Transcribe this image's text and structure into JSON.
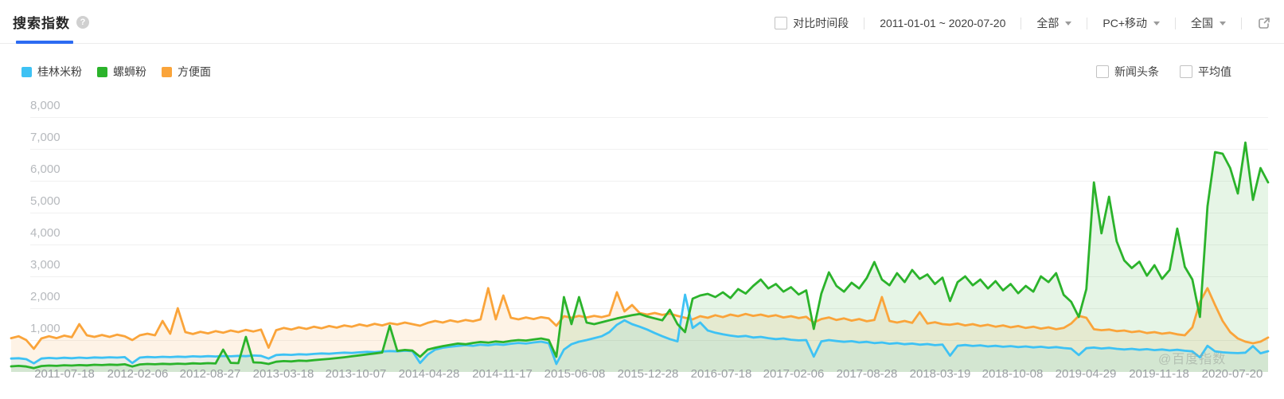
{
  "header": {
    "title": "搜索指数",
    "help_icon": "?",
    "compare_label": "对比时间段",
    "date_range": "2011-01-01 ~ 2020-07-20",
    "filters": [
      {
        "label": "全部"
      },
      {
        "label": "PC+移动"
      },
      {
        "label": "全国"
      }
    ],
    "external_link_icon": "open-in-new"
  },
  "overlay_toggles": [
    {
      "label": "新闻头条",
      "checked": false
    },
    {
      "label": "平均值",
      "checked": false
    }
  ],
  "watermark": "@百度指数",
  "chart_data": {
    "type": "line",
    "title": "搜索指数",
    "x_range": [
      "2011-01-01",
      "2020-07-20"
    ],
    "sampling": "weekly search index approximated at 3-week intervals, 167 points per series",
    "grid": true,
    "legend_position": "top-left",
    "x_axis": {
      "tick_labels": [
        "2011-07-18",
        "2012-02-06",
        "2012-08-27",
        "2013-03-18",
        "2013-10-07",
        "2014-04-28",
        "2014-11-17",
        "2015-06-08",
        "2015-12-28",
        "2016-07-18",
        "2017-02-06",
        "2017-08-28",
        "2018-03-19",
        "2018-10-08",
        "2019-04-29",
        "2019-11-18",
        "2020-07-20"
      ]
    },
    "y_axis": {
      "min": 0,
      "max": 8000,
      "tick_labels": [
        "8,000",
        "7,000",
        "6,000",
        "5,000",
        "4,000",
        "3,000",
        "2,000",
        "1,000"
      ]
    },
    "series": [
      {
        "name": "桂林米粉",
        "color": "#3ec2f4",
        "fill": "rgba(62,194,244,0.10)",
        "values": [
          420,
          430,
          400,
          270,
          420,
          440,
          425,
          445,
          430,
          450,
          435,
          455,
          445,
          460,
          450,
          465,
          280,
          450,
          470,
          460,
          475,
          465,
          480,
          470,
          490,
          480,
          495,
          485,
          500,
          490,
          505,
          495,
          515,
          505,
          420,
          530,
          545,
          535,
          555,
          545,
          565,
          580,
          570,
          590,
          605,
          595,
          615,
          630,
          620,
          640,
          655,
          645,
          665,
          650,
          280,
          540,
          700,
          760,
          790,
          815,
          840,
          820,
          855,
          835,
          870,
          850,
          885,
          910,
          890,
          925,
          950,
          900,
          250,
          700,
          870,
          950,
          1000,
          1060,
          1120,
          1250,
          1480,
          1620,
          1500,
          1420,
          1330,
          1220,
          1120,
          1030,
          960,
          2425,
          1380,
          1550,
          1300,
          1230,
          1180,
          1140,
          1110,
          1130,
          1080,
          1100,
          1060,
          1030,
          1050,
          1010,
          990,
          1000,
          480,
          960,
          1000,
          970,
          945,
          965,
          925,
          945,
          905,
          925,
          885,
          905,
          870,
          890,
          855,
          875,
          840,
          860,
          510,
          820,
          845,
          815,
          835,
          800,
          820,
          790,
          810,
          780,
          800,
          770,
          790,
          760,
          780,
          750,
          730,
          530,
          745,
          765,
          735,
          755,
          725,
          705,
          725,
          695,
          715,
          685,
          705,
          675,
          695,
          665,
          645,
          455,
          820,
          645,
          615,
          600,
          590,
          605,
          810,
          585,
          650
        ]
      },
      {
        "name": "螺蛳粉",
        "color": "#2bb32b",
        "fill": "rgba(60,179,60,0.13)",
        "values": [
          175,
          190,
          170,
          120,
          185,
          200,
          190,
          210,
          200,
          215,
          205,
          225,
          215,
          230,
          220,
          240,
          170,
          235,
          250,
          240,
          255,
          245,
          260,
          250,
          270,
          260,
          275,
          265,
          700,
          285,
          275,
          1100,
          300,
          290,
          250,
          320,
          340,
          330,
          355,
          345,
          370,
          390,
          410,
          435,
          460,
          490,
          520,
          550,
          580,
          610,
          1450,
          660,
          690,
          670,
          475,
          700,
          760,
          810,
          850,
          890,
          870,
          910,
          940,
          920,
          955,
          935,
          975,
          1000,
          985,
          1020,
          1050,
          1000,
          475,
          2350,
          1500,
          2350,
          1550,
          1500,
          1560,
          1620,
          1680,
          1730,
          1780,
          1820,
          1740,
          1680,
          1620,
          1950,
          1500,
          1250,
          2300,
          2400,
          2450,
          2350,
          2500,
          2320,
          2600,
          2460,
          2700,
          2900,
          2620,
          2760,
          2520,
          2660,
          2430,
          2560,
          1350,
          2460,
          3125,
          2700,
          2520,
          2800,
          2620,
          2950,
          3450,
          2900,
          2720,
          3100,
          2820,
          3200,
          2920,
          3060,
          2760,
          2960,
          2225,
          2820,
          3000,
          2720,
          2900,
          2620,
          2850,
          2560,
          2760,
          2470,
          2700,
          2520,
          3000,
          2820,
          3100,
          2420,
          2200,
          1725,
          2600,
          5950,
          4350,
          5500,
          4100,
          3500,
          3260,
          3460,
          3020,
          3350,
          2920,
          3200,
          4500,
          3300,
          2900,
          1725,
          5200,
          6900,
          6850,
          6400,
          5600,
          7200,
          5400,
          6400,
          5950
        ]
      },
      {
        "name": "方便面",
        "color": "#faa43a",
        "fill": "rgba(250,164,58,0.13)",
        "values": [
          1060,
          1120,
          1000,
          725,
          1050,
          1120,
          1060,
          1140,
          1090,
          1500,
          1150,
          1100,
          1160,
          1100,
          1170,
          1120,
          1000,
          1150,
          1200,
          1150,
          1600,
          1200,
          2000,
          1250,
          1190,
          1260,
          1210,
          1280,
          1230,
          1300,
          1250,
          1320,
          1270,
          1330,
          760,
          1310,
          1380,
          1330,
          1400,
          1350,
          1420,
          1370,
          1440,
          1390,
          1460,
          1420,
          1490,
          1440,
          1510,
          1460,
          1530,
          1490,
          1550,
          1500,
          1450,
          1540,
          1600,
          1550,
          1620,
          1570,
          1630,
          1590,
          1650,
          2630,
          1650,
          2400,
          1700,
          1650,
          1710,
          1660,
          1720,
          1680,
          1450,
          1750,
          1700,
          1760,
          1710,
          1760,
          1720,
          1780,
          2500,
          1900,
          2100,
          1850,
          1800,
          1850,
          1790,
          1830,
          1760,
          1700,
          1650,
          1750,
          1700,
          1780,
          1720,
          1800,
          1750,
          1820,
          1760,
          1800,
          1740,
          1780,
          1710,
          1750,
          1690,
          1730,
          1550,
          1660,
          1710,
          1630,
          1680,
          1610,
          1660,
          1590,
          1630,
          2350,
          1600,
          1550,
          1600,
          1540,
          1875,
          1520,
          1560,
          1500,
          1480,
          1520,
          1460,
          1500,
          1440,
          1480,
          1420,
          1460,
          1400,
          1440,
          1380,
          1420,
          1360,
          1400,
          1340,
          1380,
          1520,
          1760,
          1700,
          1340,
          1310,
          1330,
          1280,
          1300,
          1250,
          1280,
          1220,
          1250,
          1200,
          1230,
          1180,
          1150,
          1400,
          2200,
          2630,
          2100,
          1600,
          1250,
          1050,
          950,
          900,
          950,
          1080
        ]
      }
    ]
  }
}
